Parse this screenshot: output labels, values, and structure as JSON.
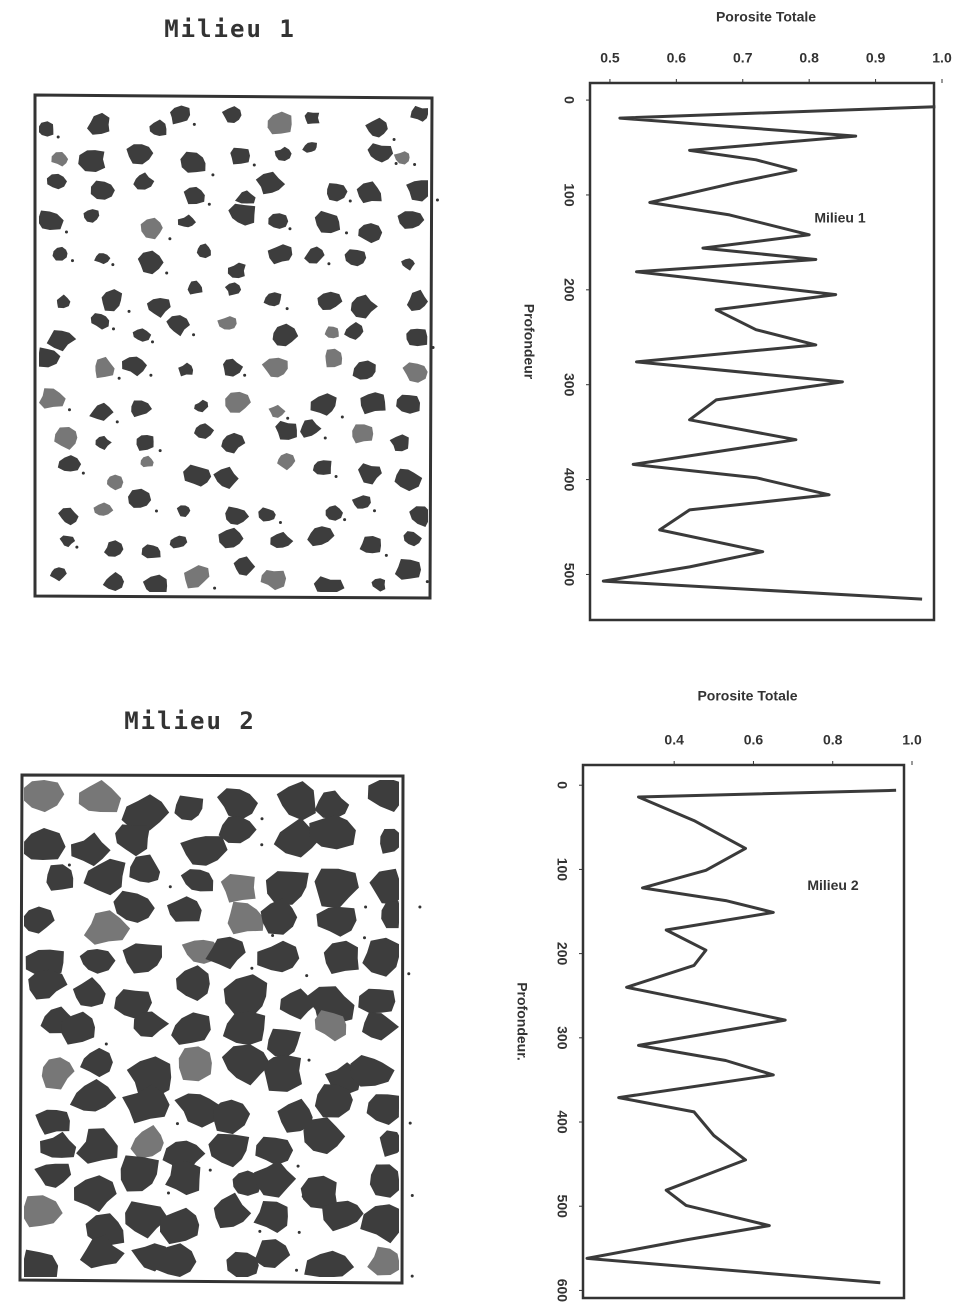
{
  "images": [
    {
      "title": "Milieu 1"
    },
    {
      "title": "Milieu 2"
    }
  ],
  "chart_data": [
    {
      "type": "line",
      "x_label": "Profondeur",
      "y_label": "Porosite Totale",
      "annotation": "Milieu 1",
      "x": [
        7,
        19,
        38,
        53,
        63,
        74,
        87,
        108,
        121,
        142,
        156,
        168,
        181,
        205,
        221,
        242,
        258,
        276,
        297,
        316,
        337,
        358,
        384,
        398,
        416,
        432,
        453,
        476,
        492,
        507,
        526
      ],
      "values": [
        0.99,
        0.515,
        0.87,
        0.62,
        0.72,
        0.78,
        0.69,
        0.56,
        0.68,
        0.8,
        0.64,
        0.81,
        0.54,
        0.84,
        0.66,
        0.72,
        0.81,
        0.54,
        0.85,
        0.66,
        0.62,
        0.78,
        0.535,
        0.72,
        0.83,
        0.62,
        0.575,
        0.73,
        0.62,
        0.49,
        0.97
      ],
      "color": "#3a3a3a",
      "xlim": [
        -18,
        548
      ],
      "xticks": [
        0,
        100,
        200,
        300,
        400,
        500
      ],
      "ylim": [
        0.47,
        1.0
      ],
      "yticks": [
        0.5,
        0.6,
        0.7,
        0.8,
        0.9,
        {
          "value": 1,
          "label": "1.0"
        }
      ]
    },
    {
      "type": "line",
      "x_label": "Profondeur.",
      "y_label": "Porosite Totale",
      "annotation": "Milieu 2",
      "x": [
        6,
        14,
        42,
        75,
        101,
        122,
        137,
        151,
        172,
        196,
        214,
        240,
        259,
        279,
        309,
        327,
        344,
        371,
        388,
        416,
        445,
        481,
        499,
        523,
        540,
        562,
        591
      ],
      "values": [
        0.96,
        0.31,
        0.45,
        0.58,
        0.48,
        0.32,
        0.53,
        0.65,
        0.38,
        0.48,
        0.45,
        0.28,
        0.48,
        0.68,
        0.31,
        0.53,
        0.65,
        0.26,
        0.45,
        0.5,
        0.58,
        0.38,
        0.43,
        0.64,
        0.43,
        0.18,
        0.92
      ],
      "color": "#3a3a3a",
      "xlim": [
        -24,
        609
      ],
      "xticks": [
        0,
        100,
        200,
        300,
        400,
        500,
        600
      ],
      "ylim": [
        0.17,
        1.0
      ],
      "yticks": [
        0.4,
        0.6,
        0.8,
        {
          "value": 1,
          "label": "1.0"
        }
      ]
    }
  ]
}
